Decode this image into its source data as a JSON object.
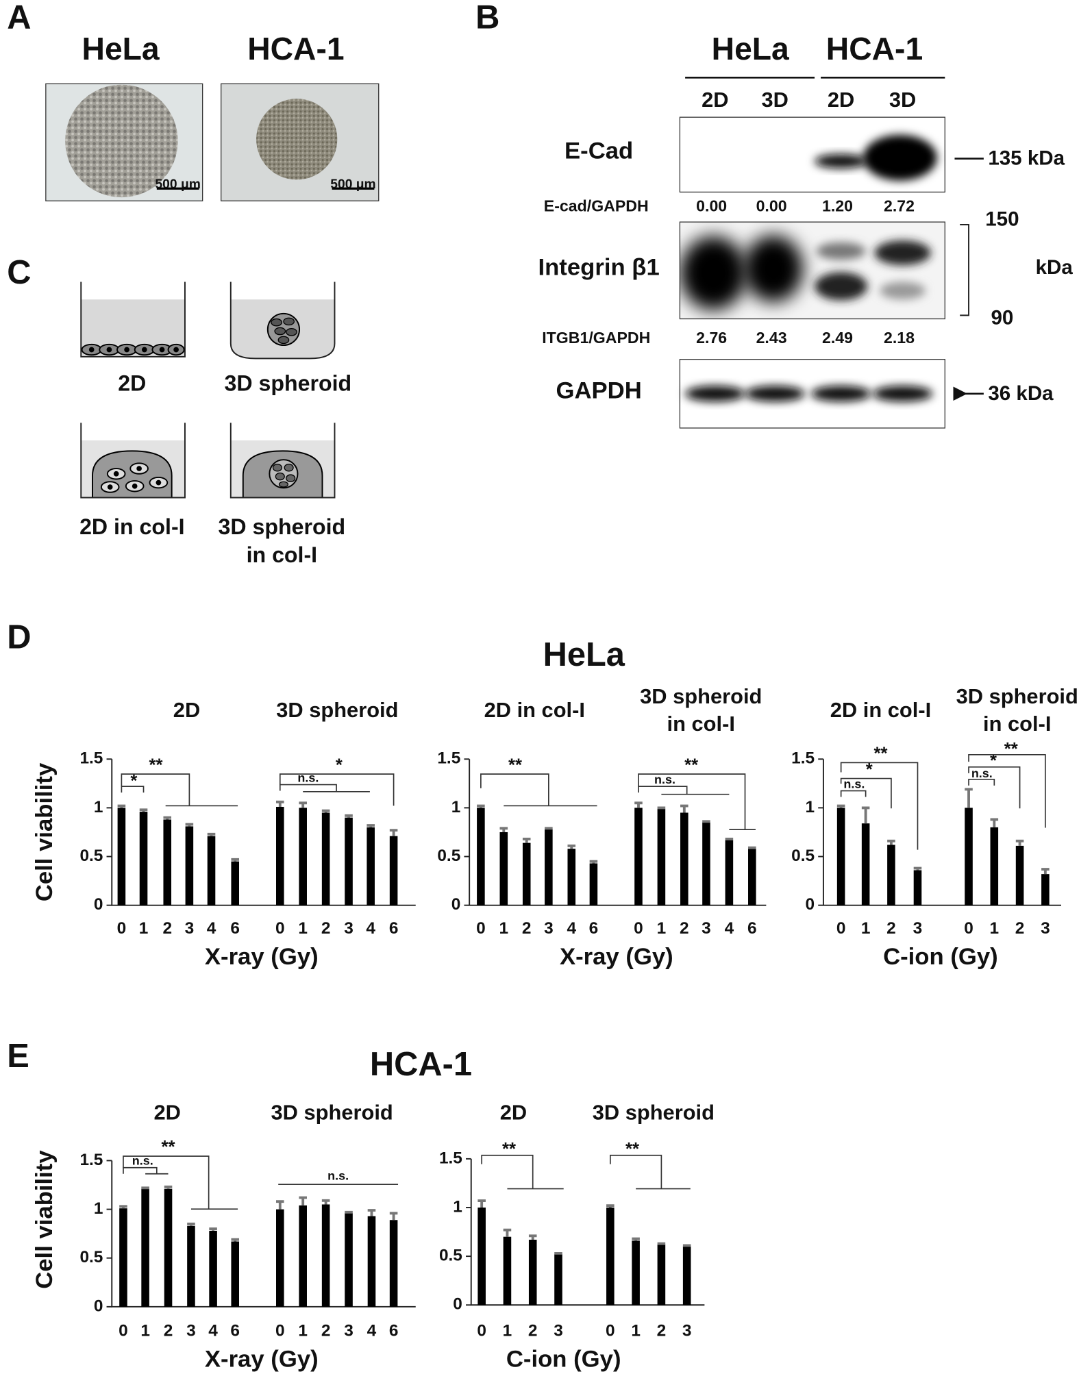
{
  "panels": {
    "A": {
      "letter": "A",
      "labels": [
        "HeLa",
        "HCA-1"
      ],
      "scale_bars": [
        "500 μm",
        "500 μm"
      ]
    },
    "B": {
      "letter": "B",
      "groups": [
        "HeLa",
        "HCA-1"
      ],
      "lanes": [
        "2D",
        "3D",
        "2D",
        "3D"
      ],
      "blots": [
        {
          "label": "E-Cad",
          "size": "135 kDa"
        },
        {
          "label": "Integrin β1",
          "sizes": [
            "150",
            "kDa",
            "90"
          ]
        },
        {
          "label": "GAPDH",
          "size": "36 kDa"
        }
      ],
      "ratios": [
        {
          "label": "E-cad/GAPDH",
          "values": [
            "0.00",
            "0.00",
            "1.20",
            "2.72"
          ]
        },
        {
          "label": "ITGB1/GAPDH",
          "values": [
            "2.76",
            "2.43",
            "2.49",
            "2.18"
          ]
        }
      ]
    },
    "C": {
      "letter": "C",
      "labels": [
        [
          "2D"
        ],
        [
          "3D spheroid"
        ],
        [
          "2D in col-I"
        ],
        [
          "3D spheroid",
          "in col-I"
        ]
      ]
    },
    "D": {
      "letter": "D",
      "title": "HeLa"
    },
    "E": {
      "letter": "E",
      "title": "HCA-1"
    }
  },
  "chart_data": [
    {
      "type": "bar",
      "ylabel": "Cell viability",
      "xlabel": "X-ray (Gy)",
      "ylim": [
        0,
        1.5
      ],
      "yticks": [
        0,
        0.5,
        1,
        1.5
      ],
      "color": "#000000",
      "error_color": "#777777",
      "groups": [
        {
          "title": [
            "2D"
          ],
          "categories": [
            "0",
            "1",
            "2",
            "3",
            "4",
            "6"
          ],
          "values": [
            1.0,
            0.96,
            0.88,
            0.81,
            0.71,
            0.45
          ],
          "errors": [
            0.02,
            0.02,
            0.02,
            0.02,
            0.02,
            0.02
          ]
        },
        {
          "title": [
            "3D spheroid"
          ],
          "categories": [
            "0",
            "1",
            "2",
            "3",
            "4",
            "6"
          ],
          "values": [
            1.01,
            1.0,
            0.95,
            0.9,
            0.8,
            0.71
          ],
          "errors": [
            0.05,
            0.05,
            0.02,
            0.02,
            0.02,
            0.06
          ]
        }
      ],
      "annotations": [
        "*",
        "**",
        "n.s.",
        "*"
      ]
    },
    {
      "type": "bar",
      "xlabel": "X-ray (Gy)",
      "ylim": [
        0,
        1.5
      ],
      "yticks": [
        0,
        0.5,
        1,
        1.5
      ],
      "color": "#000000",
      "error_color": "#777777",
      "groups": [
        {
          "title": [
            "2D in col-I"
          ],
          "categories": [
            "0",
            "1",
            "2",
            "3",
            "4",
            "6"
          ],
          "values": [
            1.0,
            0.75,
            0.64,
            0.78,
            0.58,
            0.43
          ],
          "errors": [
            0.02,
            0.04,
            0.04,
            0.01,
            0.03,
            0.02
          ]
        },
        {
          "title": [
            "3D spheroid",
            "in col-I"
          ],
          "categories": [
            "0",
            "1",
            "2",
            "3",
            "4",
            "6"
          ],
          "values": [
            1.0,
            0.99,
            0.95,
            0.85,
            0.67,
            0.58
          ],
          "errors": [
            0.05,
            0.01,
            0.07,
            0.01,
            0.01,
            0.01
          ]
        }
      ],
      "annotations": [
        "**",
        "n.s.",
        "**"
      ]
    },
    {
      "type": "bar",
      "xlabel": "C-ion (Gy)",
      "ylim": [
        0,
        1.5
      ],
      "yticks": [
        0,
        0.5,
        1,
        1.5
      ],
      "color": "#000000",
      "error_color": "#777777",
      "groups": [
        {
          "title": [
            "2D in col-I"
          ],
          "categories": [
            "0",
            "1",
            "2",
            "3"
          ],
          "values": [
            1.0,
            0.84,
            0.62,
            0.36
          ],
          "errors": [
            0.02,
            0.16,
            0.04,
            0.02
          ]
        },
        {
          "title": [
            "3D spheroid",
            "in col-I"
          ],
          "categories": [
            "0",
            "1",
            "2",
            "3"
          ],
          "values": [
            1.0,
            0.8,
            0.61,
            0.32
          ],
          "errors": [
            0.19,
            0.08,
            0.05,
            0.05
          ]
        }
      ],
      "annotations": [
        "n.s.",
        "*",
        "**",
        "n.s.",
        "*",
        "**"
      ]
    },
    {
      "type": "bar",
      "ylabel": "Cell viability",
      "xlabel": "X-ray (Gy)",
      "ylim": [
        0,
        1.5
      ],
      "yticks": [
        0,
        0.5,
        1,
        1.5
      ],
      "color": "#000000",
      "error_color": "#777777",
      "groups": [
        {
          "title": [
            "2D"
          ],
          "categories": [
            "0",
            "1",
            "2",
            "3",
            "4",
            "6"
          ],
          "values": [
            1.01,
            1.21,
            1.21,
            0.83,
            0.78,
            0.67
          ],
          "errors": [
            0.02,
            0.01,
            0.02,
            0.02,
            0.02,
            0.02
          ]
        },
        {
          "title": [
            "3D spheroid"
          ],
          "categories": [
            "0",
            "1",
            "2",
            "3",
            "4",
            "6"
          ],
          "values": [
            1.0,
            1.04,
            1.05,
            0.96,
            0.93,
            0.89
          ],
          "errors": [
            0.08,
            0.08,
            0.04,
            0.01,
            0.06,
            0.07
          ]
        }
      ],
      "annotations": [
        "n.s.",
        "**",
        "n.s."
      ]
    },
    {
      "type": "bar",
      "xlabel": "C-ion (Gy)",
      "ylim": [
        0,
        1.5
      ],
      "yticks": [
        0,
        0.5,
        1,
        1.5
      ],
      "color": "#000000",
      "error_color": "#777777",
      "groups": [
        {
          "title": [
            "2D"
          ],
          "categories": [
            "0",
            "1",
            "2",
            "3"
          ],
          "values": [
            1.0,
            0.7,
            0.67,
            0.52
          ],
          "errors": [
            0.07,
            0.07,
            0.04,
            0.01
          ]
        },
        {
          "title": [
            "3D spheroid"
          ],
          "categories": [
            "0",
            "1",
            "2",
            "3"
          ],
          "values": [
            1.0,
            0.66,
            0.62,
            0.6
          ],
          "errors": [
            0.02,
            0.02,
            0.01,
            0.01
          ]
        }
      ],
      "annotations": [
        "**",
        "**"
      ]
    }
  ]
}
